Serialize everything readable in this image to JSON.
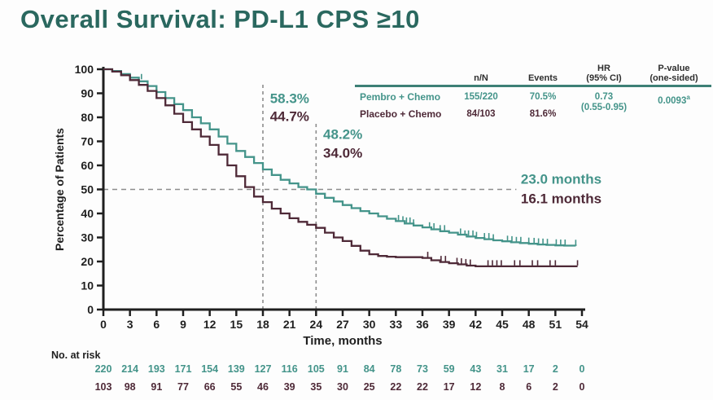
{
  "title": "Overall Survival: PD-L1 CPS ≥10",
  "colors": {
    "teal": "#44948a",
    "maroon": "#4e2937",
    "title_text": "#2a685f",
    "rule": "#3d8076",
    "dash": "#8d8d8d",
    "axis": "#1f1f1f",
    "header_text": "#2e2e2e"
  },
  "summary_table": {
    "headers": [
      {
        "line1": "n/N",
        "line2": ""
      },
      {
        "line1": "Events",
        "line2": ""
      },
      {
        "line1": "HR",
        "line2": "(95% CI)"
      },
      {
        "line1": "P-value",
        "line2": "(one-sided)"
      }
    ],
    "rows": [
      {
        "label": "Pembro + Chemo",
        "n_n": "155/220",
        "events": "70.5%",
        "color_key": "teal"
      },
      {
        "label": "Placebo + Chemo",
        "n_n": "84/103",
        "events": "81.6%",
        "color_key": "maroon"
      }
    ],
    "hr": {
      "value": "0.73",
      "ci": "(0.55-0.95)"
    },
    "p_value": {
      "value": "0.0093",
      "marker": "a"
    }
  },
  "chart_data": {
    "type": "line",
    "subtype": "kaplan-meier-step",
    "xlabel": "Time, months",
    "ylabel": "Percentage of Patients",
    "xlim": [
      0,
      54
    ],
    "x_tick_step": 3,
    "ylim": [
      0,
      100
    ],
    "y_tick_step": 10,
    "grid": false,
    "series": [
      {
        "name": "Pembro + Chemo",
        "color_key": "teal",
        "median_months": 23.0,
        "rate_18mo": "58.3%",
        "rate_24mo": "48.2%",
        "points": [
          [
            0,
            100
          ],
          [
            1,
            99.3
          ],
          [
            2,
            98
          ],
          [
            3,
            96.5
          ],
          [
            4,
            95
          ],
          [
            5,
            93
          ],
          [
            6,
            90.5
          ],
          [
            7,
            88
          ],
          [
            8,
            85.5
          ],
          [
            9,
            83
          ],
          [
            10,
            80
          ],
          [
            11,
            77.5
          ],
          [
            12,
            75
          ],
          [
            13,
            72
          ],
          [
            14,
            69
          ],
          [
            15,
            66
          ],
          [
            16,
            63.5
          ],
          [
            17,
            61
          ],
          [
            18,
            58.3
          ],
          [
            19,
            56
          ],
          [
            20,
            54
          ],
          [
            21,
            52.5
          ],
          [
            22,
            51
          ],
          [
            23,
            50
          ],
          [
            24,
            48.2
          ],
          [
            25,
            46.5
          ],
          [
            26,
            45
          ],
          [
            27,
            43.5
          ],
          [
            28,
            42.2
          ],
          [
            29,
            41
          ],
          [
            30,
            40
          ],
          [
            31,
            38.8
          ],
          [
            32,
            37.8
          ],
          [
            33,
            36.8
          ],
          [
            34,
            35.8
          ],
          [
            35,
            35
          ],
          [
            36,
            34.2
          ],
          [
            37,
            33.4
          ],
          [
            38,
            32.6
          ],
          [
            39,
            32
          ],
          [
            40,
            31.2
          ],
          [
            41,
            30.4
          ],
          [
            42,
            29.8
          ],
          [
            43,
            29.3
          ],
          [
            44,
            28.8
          ],
          [
            45,
            28.4
          ],
          [
            46,
            28
          ],
          [
            47,
            27.7
          ],
          [
            48,
            27.4
          ],
          [
            49,
            27.1
          ],
          [
            50,
            26.9
          ],
          [
            51,
            26.7
          ],
          [
            52,
            26.6
          ],
          [
            53.3,
            26.5
          ]
        ],
        "censors": [
          [
            4.3,
            95.5
          ],
          [
            33.3,
            36.8
          ],
          [
            33.8,
            36.3
          ],
          [
            34.2,
            35.8
          ],
          [
            34.6,
            35.8
          ],
          [
            35.0,
            35.0
          ],
          [
            36.8,
            33.8
          ],
          [
            37.3,
            33.4
          ],
          [
            38.0,
            32.6
          ],
          [
            38.5,
            32.6
          ],
          [
            40.3,
            31.2
          ],
          [
            40.8,
            30.4
          ],
          [
            41.2,
            30.4
          ],
          [
            41.7,
            30.4
          ],
          [
            42.1,
            29.8
          ],
          [
            43.0,
            29.3
          ],
          [
            43.5,
            29.3
          ],
          [
            44.0,
            28.8
          ],
          [
            45.6,
            28.2
          ],
          [
            46.1,
            28.0
          ],
          [
            46.6,
            27.7
          ],
          [
            47.1,
            27.7
          ],
          [
            48.0,
            27.4
          ],
          [
            48.6,
            27.3
          ],
          [
            49.1,
            27.1
          ],
          [
            49.6,
            27.0
          ],
          [
            50.1,
            26.9
          ],
          [
            51.1,
            26.7
          ],
          [
            51.6,
            26.6
          ],
          [
            52.1,
            26.6
          ],
          [
            53.3,
            26.5
          ]
        ]
      },
      {
        "name": "Placebo + Chemo",
        "color_key": "maroon",
        "median_months": 16.1,
        "rate_18mo": "44.7%",
        "rate_24mo": "34.0%",
        "points": [
          [
            0,
            100
          ],
          [
            1,
            99
          ],
          [
            2,
            97.5
          ],
          [
            3,
            95.5
          ],
          [
            4,
            93.5
          ],
          [
            5,
            91
          ],
          [
            6,
            88
          ],
          [
            7,
            85
          ],
          [
            8,
            81.5
          ],
          [
            9,
            78
          ],
          [
            10,
            75
          ],
          [
            11,
            72
          ],
          [
            12,
            68.5
          ],
          [
            13,
            64.5
          ],
          [
            14,
            60
          ],
          [
            15,
            55.5
          ],
          [
            16,
            51
          ],
          [
            17,
            47
          ],
          [
            18,
            44.7
          ],
          [
            19,
            42
          ],
          [
            20,
            40
          ],
          [
            21,
            38
          ],
          [
            22,
            36.5
          ],
          [
            23,
            35.3
          ],
          [
            24,
            34
          ],
          [
            25,
            32
          ],
          [
            26,
            30
          ],
          [
            27,
            28.5
          ],
          [
            28,
            26.5
          ],
          [
            29,
            24.5
          ],
          [
            30,
            23
          ],
          [
            31,
            22.3
          ],
          [
            32,
            22
          ],
          [
            33,
            21.8
          ],
          [
            36,
            21.5
          ],
          [
            37,
            20.5
          ],
          [
            38,
            19.8
          ],
          [
            39,
            19.3
          ],
          [
            40,
            18.8
          ],
          [
            41,
            18.3
          ],
          [
            42,
            18
          ],
          [
            53.5,
            18
          ]
        ],
        "censors": [
          [
            36.6,
            21.5
          ],
          [
            38.1,
            19.8
          ],
          [
            38.6,
            19.8
          ],
          [
            39.9,
            19.0
          ],
          [
            40.4,
            18.8
          ],
          [
            40.9,
            18.5
          ],
          [
            41.4,
            18.3
          ],
          [
            43.4,
            18
          ],
          [
            43.9,
            18
          ],
          [
            44.4,
            18
          ],
          [
            44.9,
            18
          ],
          [
            46.4,
            18
          ],
          [
            47.0,
            18
          ],
          [
            48.4,
            18
          ],
          [
            49.0,
            18
          ],
          [
            50.4,
            18
          ],
          [
            51.0,
            18
          ],
          [
            53.5,
            18
          ]
        ]
      }
    ],
    "reference_lines": [
      {
        "orientation": "v",
        "x_month": 18,
        "from_pct": 0,
        "to_pct": 94
      },
      {
        "orientation": "v",
        "x_month": 24,
        "from_pct": 0,
        "to_pct": 78
      },
      {
        "orientation": "h",
        "y_pct": 50,
        "from_month": 0,
        "to_month": 46.6
      }
    ],
    "annotations": [
      {
        "text": "58.3%",
        "color_key": "teal",
        "x_month": 18.8,
        "y_pct": 86.0
      },
      {
        "text": "44.7%",
        "color_key": "maroon",
        "x_month": 18.8,
        "y_pct": 78.5
      },
      {
        "text": "48.2%",
        "color_key": "teal",
        "x_month": 24.8,
        "y_pct": 71.0
      },
      {
        "text": "34.0%",
        "color_key": "maroon",
        "x_month": 24.8,
        "y_pct": 63.3
      },
      {
        "text": "23.0 months",
        "color_key": "teal",
        "x_month": 47.1,
        "y_pct": 52.3
      },
      {
        "text": "16.1 months",
        "color_key": "maroon",
        "x_month": 47.1,
        "y_pct": 44.3
      }
    ]
  },
  "risk_table": {
    "label": "No. at risk",
    "times": [
      0,
      3,
      6,
      9,
      12,
      15,
      18,
      21,
      24,
      27,
      30,
      33,
      36,
      39,
      42,
      45,
      48,
      51,
      54
    ],
    "rows": [
      {
        "name": "Pembro + Chemo",
        "color_key": "teal",
        "values": [
          220,
          214,
          193,
          171,
          154,
          139,
          127,
          116,
          105,
          91,
          84,
          78,
          73,
          59,
          43,
          31,
          17,
          2,
          0
        ]
      },
      {
        "name": "Placebo + Chemo",
        "color_key": "maroon",
        "values": [
          103,
          98,
          91,
          77,
          66,
          55,
          46,
          39,
          35,
          30,
          25,
          22,
          22,
          17,
          12,
          8,
          6,
          2,
          0
        ]
      }
    ]
  }
}
